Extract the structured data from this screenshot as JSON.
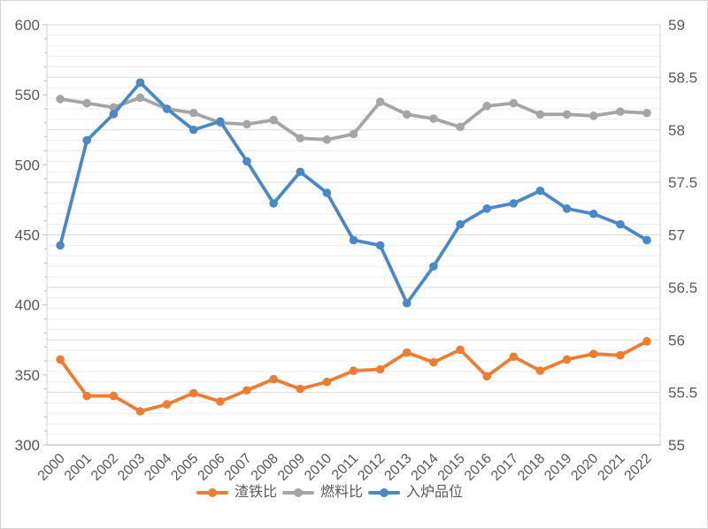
{
  "figure": {
    "background": "#ffffff",
    "border_color": "#d4d4d4"
  },
  "colors": {
    "axis_text": "#595959",
    "grid_minor": "#ededed",
    "grid_major": "#d9d9d9",
    "axis_line": "#bfbfbf",
    "side_line": "#d0d0d0"
  },
  "chart_data": {
    "type": "line",
    "title": "",
    "xlabel": "",
    "ylabel_left": "",
    "ylabel_right": "",
    "grid": "on",
    "legend_position": "bottom",
    "categories": [
      "2000",
      "2001",
      "2002",
      "2003",
      "2004",
      "2005",
      "2006",
      "2007",
      "2008",
      "2009",
      "2010",
      "2011",
      "2012",
      "2013",
      "2014",
      "2015",
      "2016",
      "2017",
      "2018",
      "2019",
      "2020",
      "2021",
      "2022"
    ],
    "series": [
      {
        "name": "渣铁比",
        "key": "slag-iron-ratio",
        "axis": "left",
        "color": "#ED7D31",
        "values": [
          361,
          335,
          335,
          324,
          329,
          337,
          331,
          339,
          347,
          340,
          345,
          353,
          354,
          366,
          359,
          368,
          349,
          363,
          353,
          361,
          365,
          364,
          374
        ]
      },
      {
        "name": "燃料比",
        "key": "fuel-ratio",
        "axis": "left",
        "color": "#A5A5A5",
        "values": [
          547,
          544,
          541,
          548,
          540,
          537,
          530,
          529,
          532,
          519,
          518,
          522,
          545,
          536,
          533,
          527,
          542,
          544,
          536,
          536,
          535,
          538,
          537
        ]
      },
      {
        "name": "入炉品位",
        "key": "ore-grade",
        "axis": "right",
        "color": "#4A89C8",
        "values": [
          56.9,
          57.9,
          58.15,
          58.45,
          58.2,
          58.0,
          58.08,
          57.7,
          57.3,
          57.6,
          57.4,
          56.95,
          56.9,
          56.35,
          56.7,
          57.1,
          57.25,
          57.3,
          57.42,
          57.25,
          57.2,
          57.1,
          56.95
        ]
      }
    ],
    "left_axis": {
      "min": 300,
      "max": 600,
      "major_step": 50,
      "minor_step": 10,
      "ticks": [
        "600",
        "550",
        "500",
        "450",
        "400",
        "350",
        "300"
      ]
    },
    "right_axis": {
      "min": 55,
      "max": 59,
      "major_step": 0.5,
      "minor_step": 0.1,
      "ticks": [
        "59",
        "58.5",
        "58",
        "57.5",
        "57",
        "56.5",
        "56",
        "55.5",
        "55"
      ]
    }
  }
}
